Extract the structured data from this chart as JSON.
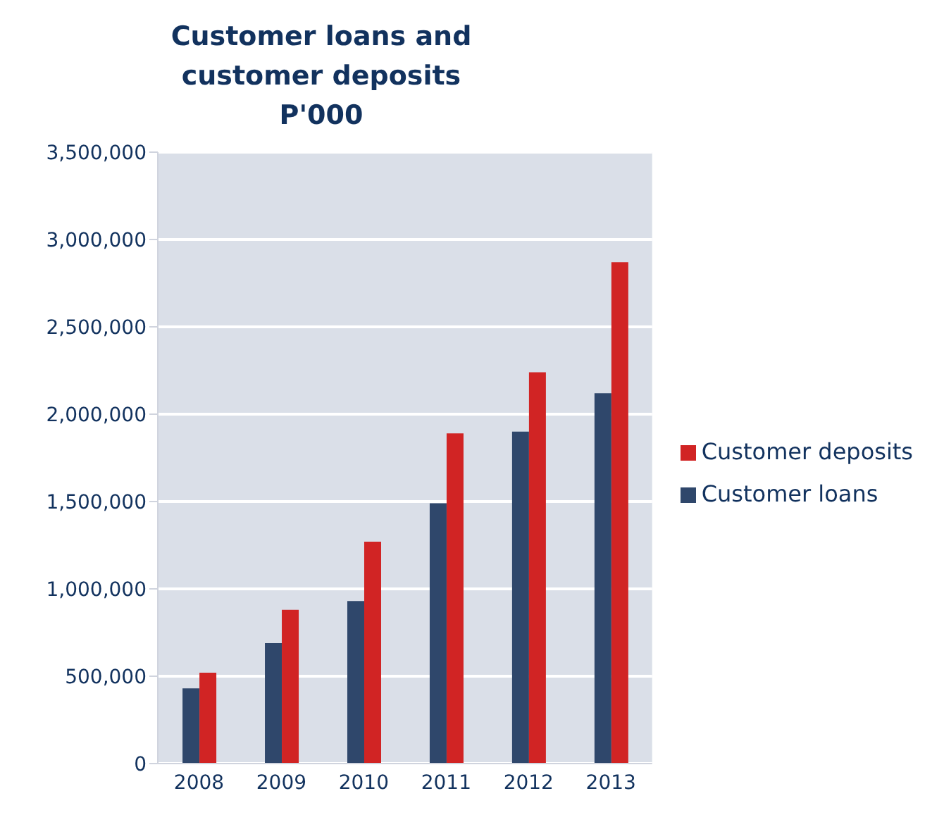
{
  "chart_data": {
    "type": "bar",
    "title": "Customer loans and customer deposits",
    "subtitle": "P'000",
    "categories": [
      "2008",
      "2009",
      "2010",
      "2011",
      "2012",
      "2013"
    ],
    "series": [
      {
        "name": "Customer loans",
        "color": "#2f476b",
        "values": [
          430000,
          690000,
          930000,
          1490000,
          1900000,
          2120000
        ]
      },
      {
        "name": "Customer deposits",
        "color": "#d12424",
        "values": [
          520000,
          880000,
          1270000,
          1890000,
          2240000,
          2870000
        ]
      }
    ],
    "ylim": [
      0,
      3500000
    ],
    "yticks": [
      0,
      {
        "value": 500000,
        "label": "500,000"
      },
      {
        "value": 1000000,
        "label": "1,000,000"
      },
      {
        "value": 1500000,
        "label": "1,500,000"
      },
      {
        "value": 2000000,
        "label": "2,000,000"
      },
      {
        "value": 2500000,
        "label": "2,500,000"
      },
      {
        "value": 3000000,
        "label": "3,000,000"
      },
      {
        "value": 3500000,
        "label": "3,500,000"
      }
    ],
    "grid": "y",
    "legend": "right"
  }
}
